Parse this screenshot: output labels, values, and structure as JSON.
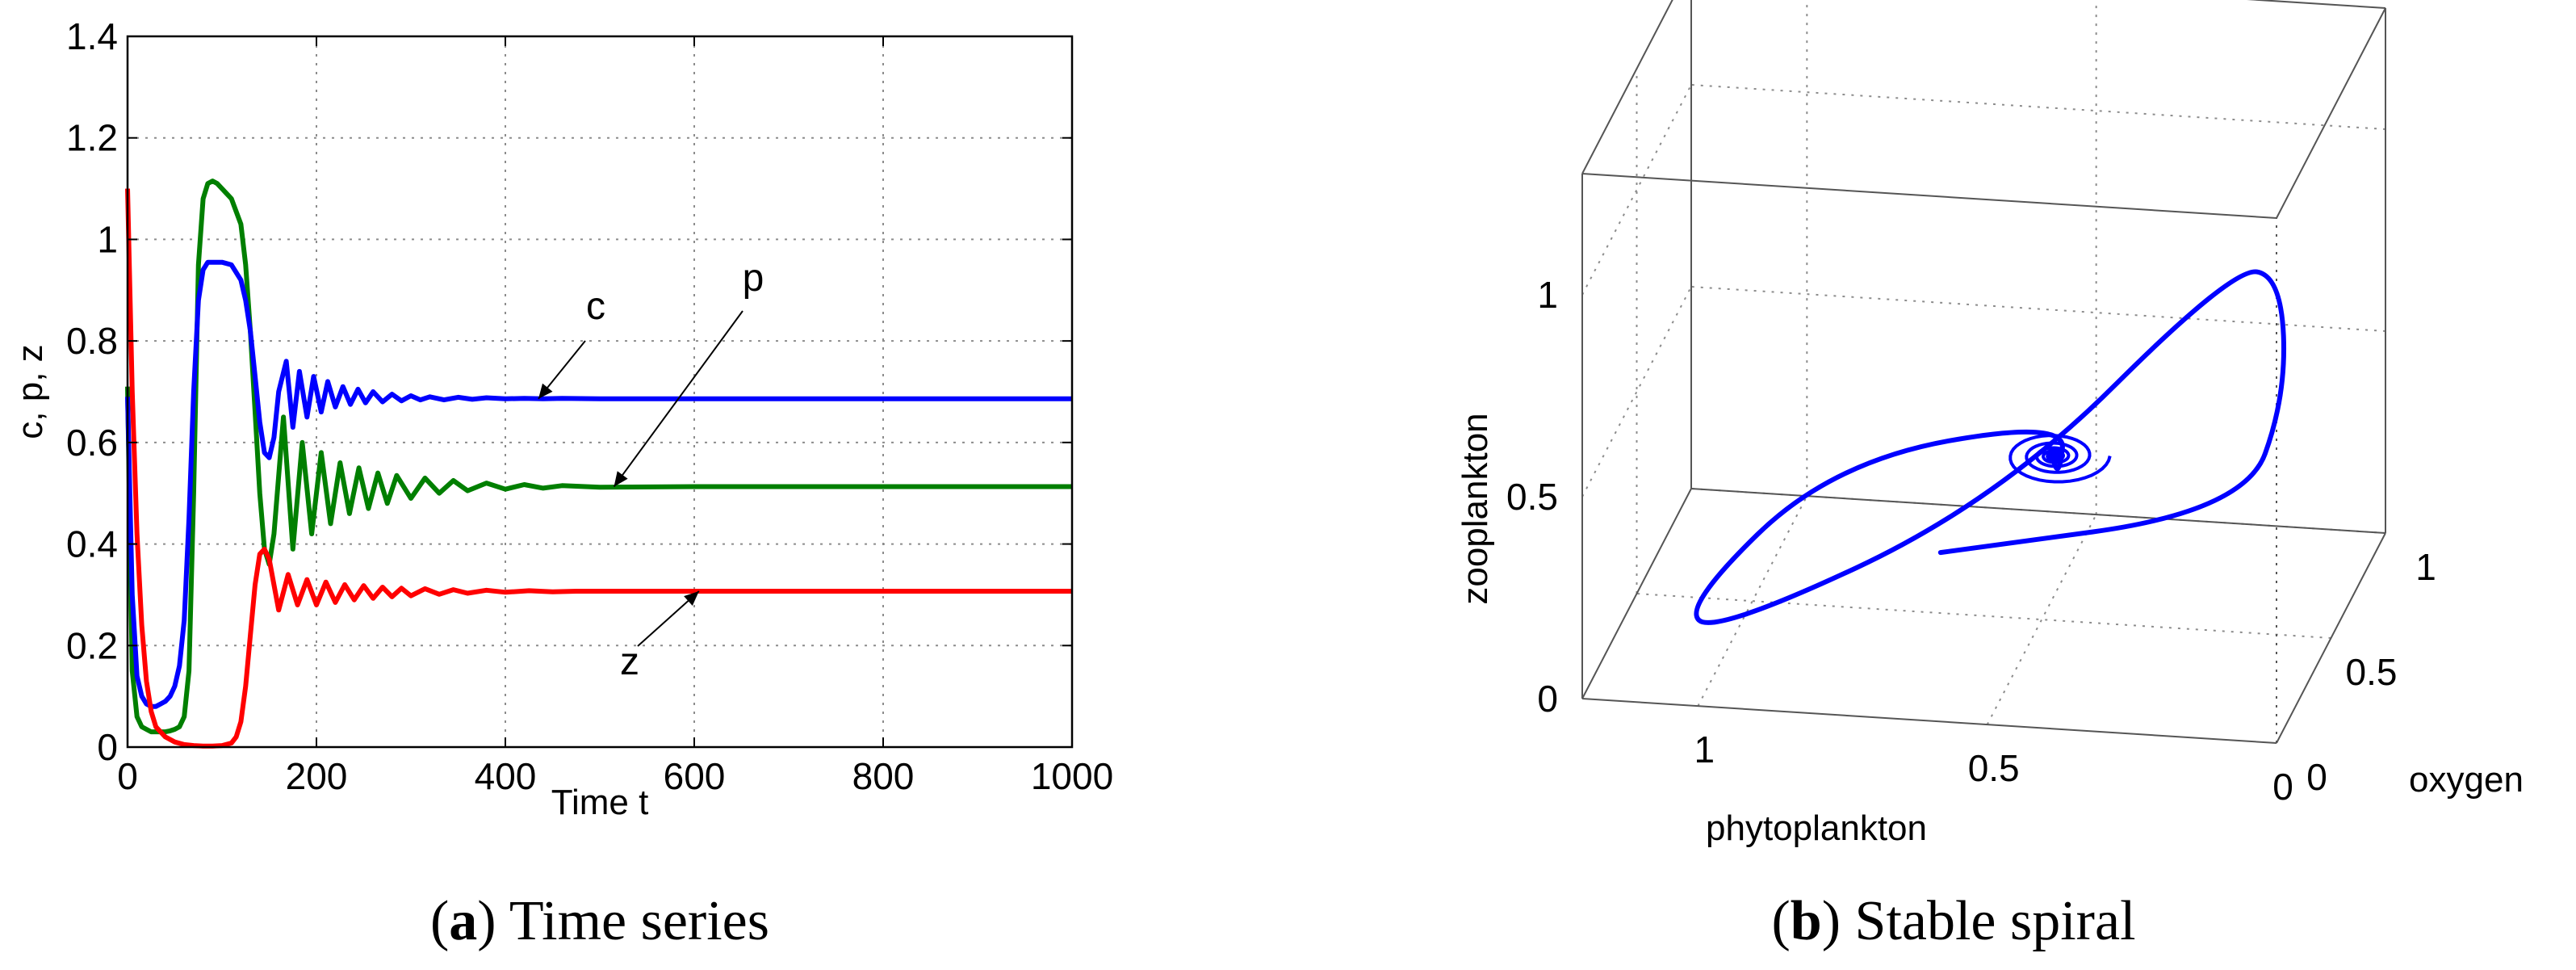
{
  "chart_data": [
    {
      "type": "line",
      "title": "",
      "xlabel": "Time t",
      "ylabel": "c, p, z",
      "xlim": [
        0,
        1000
      ],
      "ylim": [
        0,
        1.4
      ],
      "x_ticks": [
        "0",
        "200",
        "400",
        "600",
        "800",
        "1000"
      ],
      "y_ticks": [
        "0",
        "0.2",
        "0.4",
        "0.6",
        "0.8",
        "1",
        "1.2",
        "1.4"
      ],
      "grid": true,
      "series": [
        {
          "name": "c",
          "color": "#0000ff",
          "x": [
            0,
            5,
            10,
            15,
            20,
            25,
            30,
            35,
            40,
            45,
            50,
            55,
            60,
            65,
            70,
            75,
            80,
            85,
            90,
            100,
            110,
            120,
            125,
            130,
            135,
            140,
            145,
            150,
            155,
            160,
            168,
            175,
            182,
            190,
            197,
            205,
            212,
            220,
            228,
            236,
            244,
            252,
            260,
            270,
            280,
            290,
            300,
            310,
            320,
            335,
            350,
            365,
            380,
            400,
            420,
            440,
            460,
            500,
            600,
            800,
            1000
          ],
          "values": [
            0.69,
            0.3,
            0.14,
            0.1,
            0.085,
            0.08,
            0.08,
            0.085,
            0.09,
            0.1,
            0.12,
            0.16,
            0.25,
            0.45,
            0.7,
            0.88,
            0.94,
            0.955,
            0.955,
            0.955,
            0.95,
            0.92,
            0.88,
            0.82,
            0.73,
            0.64,
            0.58,
            0.57,
            0.61,
            0.7,
            0.76,
            0.63,
            0.74,
            0.65,
            0.73,
            0.66,
            0.72,
            0.67,
            0.71,
            0.675,
            0.705,
            0.678,
            0.7,
            0.68,
            0.695,
            0.682,
            0.692,
            0.684,
            0.69,
            0.684,
            0.689,
            0.685,
            0.688,
            0.686,
            0.687,
            0.686,
            0.687,
            0.686,
            0.686,
            0.686,
            0.686
          ]
        },
        {
          "name": "p",
          "color": "#007f00",
          "x": [
            0,
            5,
            10,
            15,
            20,
            25,
            30,
            35,
            40,
            45,
            50,
            55,
            60,
            65,
            70,
            75,
            80,
            85,
            90,
            95,
            100,
            110,
            120,
            125,
            130,
            135,
            140,
            145,
            150,
            155,
            165,
            175,
            185,
            195,
            205,
            215,
            225,
            235,
            245,
            255,
            265,
            275,
            285,
            300,
            315,
            330,
            345,
            360,
            380,
            400,
            420,
            440,
            460,
            500,
            600,
            800,
            1000
          ],
          "values": [
            0.71,
            0.15,
            0.06,
            0.04,
            0.035,
            0.03,
            0.03,
            0.03,
            0.03,
            0.032,
            0.035,
            0.04,
            0.06,
            0.15,
            0.5,
            0.95,
            1.08,
            1.11,
            1.115,
            1.11,
            1.1,
            1.08,
            1.03,
            0.95,
            0.82,
            0.66,
            0.5,
            0.39,
            0.36,
            0.42,
            0.65,
            0.39,
            0.6,
            0.42,
            0.58,
            0.44,
            0.56,
            0.46,
            0.55,
            0.47,
            0.54,
            0.48,
            0.535,
            0.49,
            0.53,
            0.5,
            0.525,
            0.505,
            0.52,
            0.508,
            0.517,
            0.51,
            0.515,
            0.512,
            0.513,
            0.513,
            0.513
          ]
        },
        {
          "name": "z",
          "color": "#ff0000",
          "x": [
            0,
            5,
            10,
            15,
            20,
            25,
            30,
            40,
            50,
            60,
            70,
            80,
            90,
            100,
            110,
            115,
            120,
            125,
            130,
            135,
            140,
            145,
            150,
            160,
            170,
            180,
            190,
            200,
            210,
            220,
            230,
            240,
            250,
            260,
            270,
            280,
            290,
            300,
            315,
            330,
            345,
            360,
            380,
            400,
            425,
            450,
            475,
            500,
            600,
            800,
            1000
          ],
          "values": [
            1.1,
            0.7,
            0.42,
            0.24,
            0.13,
            0.07,
            0.04,
            0.02,
            0.01,
            0.005,
            0.003,
            0.002,
            0.002,
            0.003,
            0.008,
            0.02,
            0.05,
            0.12,
            0.22,
            0.32,
            0.38,
            0.39,
            0.37,
            0.27,
            0.34,
            0.28,
            0.33,
            0.28,
            0.325,
            0.285,
            0.32,
            0.29,
            0.318,
            0.293,
            0.315,
            0.296,
            0.313,
            0.298,
            0.312,
            0.301,
            0.31,
            0.303,
            0.309,
            0.305,
            0.308,
            0.306,
            0.307,
            0.307,
            0.307,
            0.307,
            0.307
          ]
        }
      ],
      "annotations": [
        {
          "text": "c",
          "target_x": 435,
          "target_y": 0.686
        },
        {
          "text": "p",
          "target_x": 515,
          "target_y": 0.513
        },
        {
          "text": "z",
          "target_x": 605,
          "target_y": 0.307
        }
      ],
      "caption_letter": "a",
      "caption_text": "Time series"
    },
    {
      "type": "line",
      "title": "",
      "xlabel": "phytoplankton",
      "ylabel": "oxygen",
      "zlabel": "zooplankton",
      "x_ticks": [
        "1",
        "0.5",
        "0"
      ],
      "y_ticks": [
        "0",
        "0.5",
        "1"
      ],
      "z_ticks": [
        "0",
        "0.5",
        "1"
      ],
      "grid": true,
      "series": [
        {
          "name": "",
          "color": "#0000ff",
          "points": [
            [
              0.71,
              0.686,
              0.05
            ],
            [
              0.15,
              0.5,
              0.3
            ],
            [
              0.04,
              0.3,
              0.7
            ],
            [
              0.03,
              0.2,
              1.05
            ],
            [
              0.1,
              0.13,
              1.1
            ],
            [
              0.5,
              0.1,
              0.5
            ],
            [
              1.0,
              0.15,
              0.1
            ],
            [
              1.1,
              0.4,
              0.03
            ],
            [
              0.9,
              0.7,
              0.25
            ],
            [
              0.5,
              0.72,
              0.38
            ],
            [
              0.5,
              0.66,
              0.27
            ],
            [
              0.52,
              0.69,
              0.31
            ],
            [
              0.513,
              0.686,
              0.307
            ]
          ]
        }
      ],
      "caption_letter": "b",
      "caption_text": "Stable spiral"
    }
  ]
}
